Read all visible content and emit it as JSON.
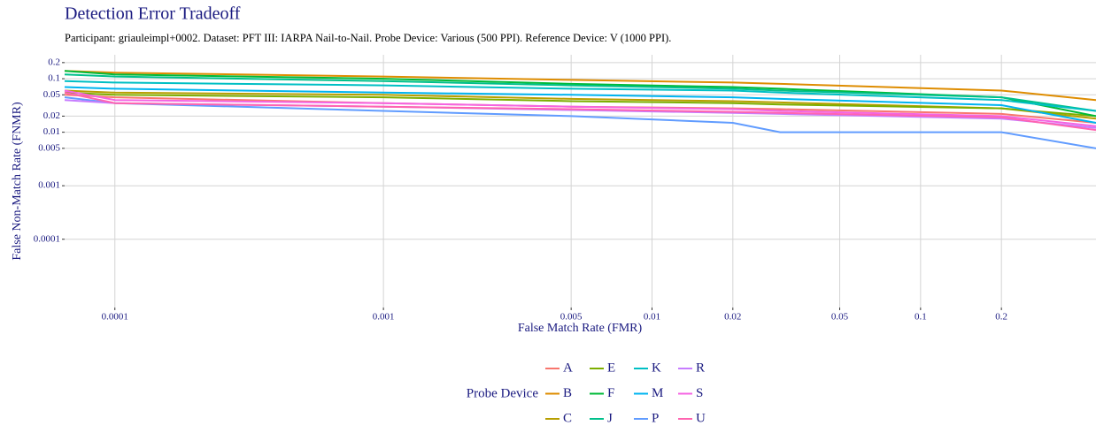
{
  "chart_data": {
    "type": "line",
    "title": "Detection Error Tradeoff",
    "subtitle": "Participant: griauleimpl+0002. Dataset: PFT III: IARPA Nail-to-Nail. Probe Device: Various (500 PPI). Reference Device: V (1000 PPI).",
    "x_label": "False Match Rate (FMR)",
    "y_label": "False Non-Match Rate (FNMR)",
    "legend_title": "Probe Device",
    "log_x": true,
    "log_y": true,
    "grid": true,
    "xlim": [
      6.5e-05,
      0.45
    ],
    "ylim": [
      5.3e-06,
      0.28
    ],
    "xticks": [
      0.0001,
      0.001,
      0.005,
      0.01,
      0.02,
      0.05,
      0.1,
      0.2
    ],
    "yticks": [
      0.0001,
      0.001,
      0.005,
      0.01,
      0.02,
      0.05,
      0.1,
      0.2
    ],
    "x": [
      6.5e-05,
      0.0001,
      0.001,
      0.005,
      0.02,
      0.03,
      0.2,
      0.45
    ],
    "series": [
      {
        "name": "A",
        "color": "#F8766D",
        "values": [
          0.05,
          0.045,
          0.035,
          0.03,
          0.028,
          0.027,
          0.022,
          0.015
        ]
      },
      {
        "name": "B",
        "color": "#DE8C00",
        "values": [
          0.14,
          0.13,
          0.11,
          0.095,
          0.085,
          0.08,
          0.06,
          0.04
        ]
      },
      {
        "name": "C",
        "color": "#B79F00",
        "values": [
          0.06,
          0.055,
          0.05,
          0.042,
          0.038,
          0.036,
          0.028,
          0.018
        ]
      },
      {
        "name": "E",
        "color": "#7CAE00",
        "values": [
          0.055,
          0.05,
          0.045,
          0.038,
          0.035,
          0.033,
          0.028,
          0.02
        ]
      },
      {
        "name": "F",
        "color": "#00BA38",
        "values": [
          0.14,
          0.12,
          0.1,
          0.08,
          0.07,
          0.065,
          0.045,
          0.02
        ]
      },
      {
        "name": "J",
        "color": "#00C08B",
        "values": [
          0.12,
          0.11,
          0.09,
          0.075,
          0.065,
          0.06,
          0.045,
          0.025
        ]
      },
      {
        "name": "K",
        "color": "#00BFC4",
        "values": [
          0.09,
          0.085,
          0.075,
          0.065,
          0.06,
          0.055,
          0.04,
          0.025
        ]
      },
      {
        "name": "M",
        "color": "#00B4F0",
        "values": [
          0.07,
          0.065,
          0.055,
          0.05,
          0.045,
          0.042,
          0.032,
          0.015
        ]
      },
      {
        "name": "P",
        "color": "#619CFF",
        "values": [
          0.045,
          0.035,
          0.025,
          0.02,
          0.015,
          0.01,
          0.01,
          0.005
        ]
      },
      {
        "name": "R",
        "color": "#C77CFF",
        "values": [
          0.04,
          0.035,
          0.03,
          0.026,
          0.023,
          0.022,
          0.018,
          0.012
        ]
      },
      {
        "name": "S",
        "color": "#F564E3",
        "values": [
          0.06,
          0.04,
          0.035,
          0.03,
          0.027,
          0.025,
          0.02,
          0.013
        ]
      },
      {
        "name": "U",
        "color": "#FF64B0",
        "values": [
          0.055,
          0.035,
          0.03,
          0.027,
          0.024,
          0.023,
          0.019,
          0.011
        ]
      }
    ]
  }
}
